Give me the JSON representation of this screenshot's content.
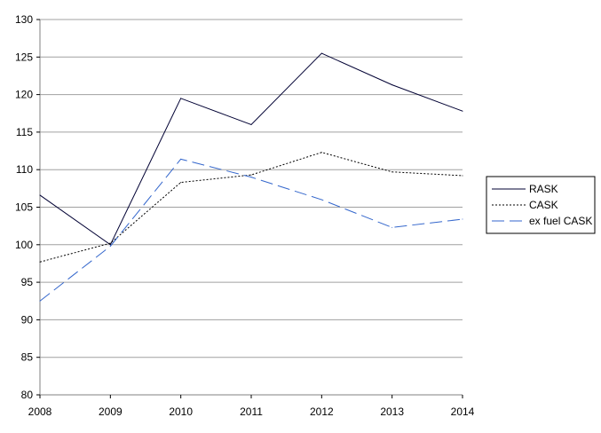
{
  "chart_data": {
    "type": "line",
    "x": [
      "2008",
      "2009",
      "2010",
      "2011",
      "2012",
      "2013",
      "2014"
    ],
    "ylim": [
      80,
      130
    ],
    "yticks": [
      80,
      85,
      90,
      95,
      100,
      105,
      110,
      115,
      120,
      125,
      130
    ],
    "grid": true,
    "legend": "right",
    "series": [
      {
        "name": "RASK",
        "values": [
          106.6,
          100.0,
          119.5,
          116.0,
          125.5,
          121.3,
          117.8
        ],
        "color": "#000033",
        "style": "solid"
      },
      {
        "name": "CASK",
        "values": [
          97.7,
          100.2,
          108.3,
          109.3,
          112.3,
          109.7,
          109.2
        ],
        "color": "#000000",
        "style": "dotted"
      },
      {
        "name": "ex fuel CASK",
        "values": [
          92.5,
          99.8,
          111.4,
          109.0,
          106.0,
          102.3,
          103.4
        ],
        "color": "#3366cc",
        "style": "dashed"
      }
    ]
  }
}
